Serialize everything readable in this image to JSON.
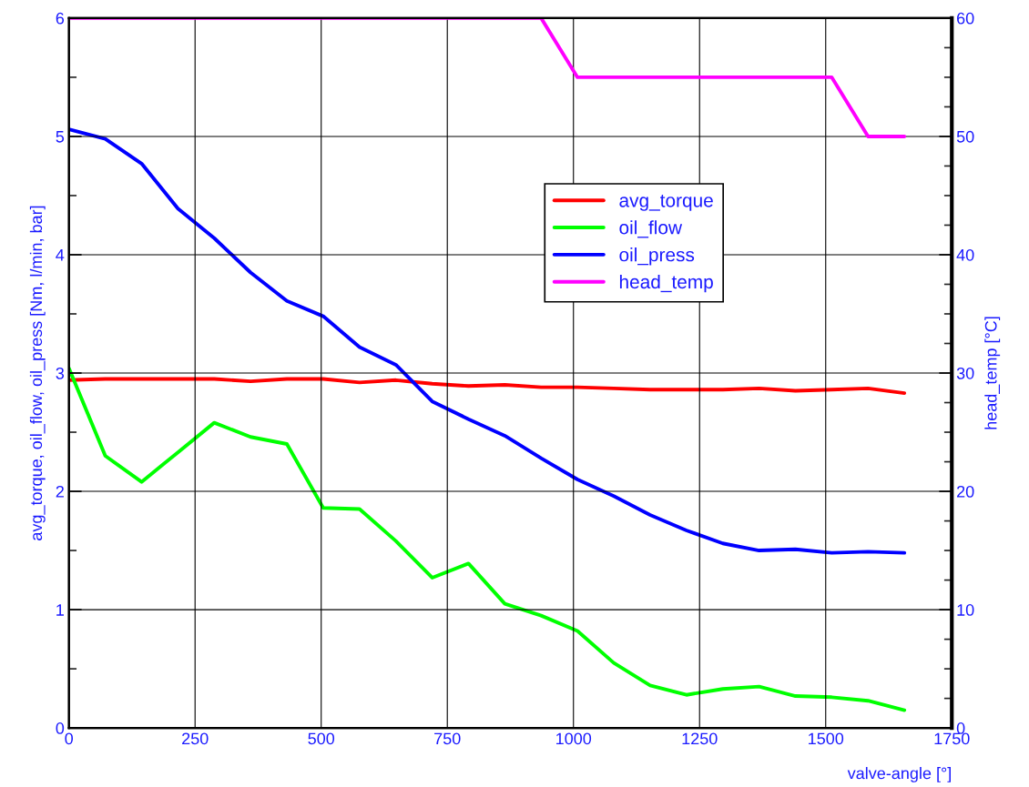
{
  "chart_data": {
    "type": "line",
    "xlabel": "valve-angle [°]",
    "ylabel": "avg_torque, oil_flow, oil_press [Nm, l/min, bar]",
    "y2label": "head_temp [°C]",
    "x": [
      0,
      72,
      144,
      216,
      288,
      360,
      432,
      504,
      576,
      648,
      720,
      792,
      864,
      936,
      1008,
      1080,
      1152,
      1224,
      1296,
      1368,
      1440,
      1512,
      1584,
      1656
    ],
    "series": [
      {
        "name": "avg_torque",
        "color": "#ff0000",
        "values": [
          2.94,
          2.95,
          2.95,
          2.95,
          2.95,
          2.93,
          2.95,
          2.95,
          2.92,
          2.94,
          2.91,
          2.89,
          2.9,
          2.88,
          2.88,
          2.87,
          2.86,
          2.86,
          2.86,
          2.87,
          2.85,
          2.86,
          2.87,
          2.83
        ]
      },
      {
        "name": "oil_flow",
        "color": "#00ff00",
        "values": [
          3.04,
          2.3,
          2.08,
          2.33,
          2.58,
          2.46,
          2.4,
          1.86,
          1.85,
          1.58,
          1.27,
          1.39,
          1.05,
          0.95,
          0.82,
          0.55,
          0.36,
          0.28,
          0.33,
          0.35,
          0.27,
          0.26,
          0.23,
          0.15
        ]
      },
      {
        "name": "oil_press",
        "color": "#0000ff",
        "values": [
          5.06,
          4.98,
          4.77,
          4.39,
          4.14,
          3.85,
          3.61,
          3.48,
          3.22,
          3.07,
          2.76,
          2.61,
          2.47,
          2.28,
          2.1,
          1.96,
          1.8,
          1.67,
          1.56,
          1.5,
          1.51,
          1.48,
          1.49,
          1.48
        ]
      },
      {
        "name": "head_temp",
        "color": "#ff00ff",
        "axis": "y2",
        "values": [
          60,
          60,
          60,
          60,
          60,
          60,
          60,
          60,
          60,
          60,
          60,
          60,
          60,
          60,
          55,
          55,
          55,
          55,
          55,
          55,
          55,
          55,
          50,
          50
        ]
      }
    ],
    "xlim": [
      0,
      1750
    ],
    "xticks": [
      0,
      250,
      500,
      750,
      1000,
      1250,
      1500,
      1750
    ],
    "ylim": [
      0,
      6
    ],
    "yticks": [
      0,
      1,
      2,
      3,
      4,
      5,
      6
    ],
    "y2lim": [
      0,
      60
    ],
    "y2ticks": [
      0,
      10,
      20,
      30,
      40,
      50,
      60
    ],
    "grid": true,
    "legend": "top",
    "marker": "none",
    "line_style": "solid"
  }
}
